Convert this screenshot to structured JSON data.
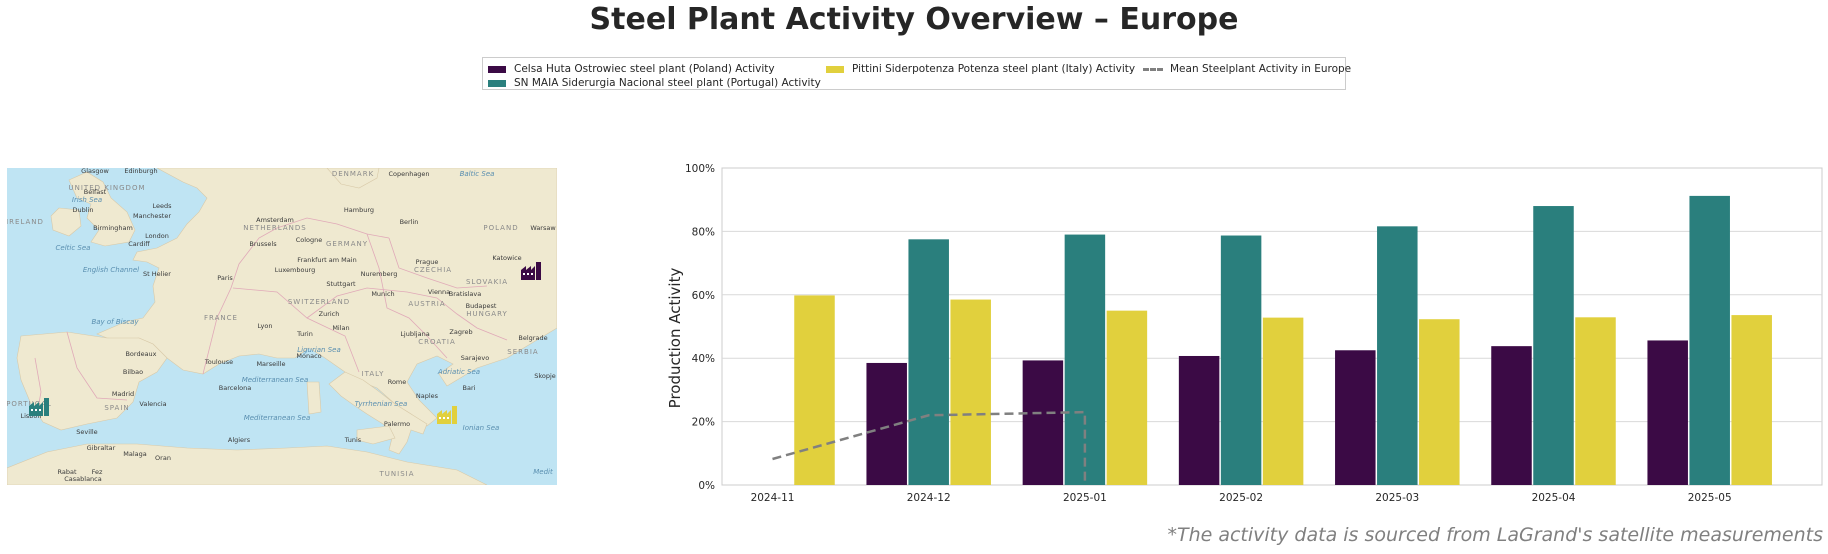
{
  "title": "Steel Plant Activity Overview – Europe",
  "footnote": "*The activity data is sourced from LaGrand's satellite measurements",
  "colors": {
    "poland": "#3b0a45",
    "portugal": "#2a7f7d",
    "italy": "#e1d03d",
    "mean": "#808080",
    "sea": "#bfe4f3",
    "land": "#efe9d0"
  },
  "legend": [
    {
      "label": "Celsa Huta Ostrowiec steel plant (Poland) Activity",
      "kind": "bar",
      "color": "#3b0a45"
    },
    {
      "label": "SN MAIA Siderurgia Nacional steel plant (Portugal) Activity",
      "kind": "bar",
      "color": "#2a7f7d"
    },
    {
      "label": "Pittini Siderpotenza Potenza steel plant (Italy) Activity",
      "kind": "bar",
      "color": "#e1d03d"
    },
    {
      "label": "Mean Steelplant Activity in Europe",
      "kind": "line",
      "color": "#808080"
    }
  ],
  "map": {
    "labels": {
      "countries": [
        "UNITED KINGDOM",
        "IRELAND",
        "FRANCE",
        "SPAIN",
        "PORTUGAL",
        "ITALY",
        "GERMANY",
        "POLAND",
        "NETHERLANDS",
        "SWITZERLAND",
        "AUSTRIA",
        "CZECHIA",
        "SLOVAKIA",
        "HUNGARY",
        "CROATIA",
        "SERBIA",
        "DENMARK",
        "TUNISIA"
      ],
      "cities": [
        "Glasgow",
        "Edinburgh",
        "Belfast",
        "Dublin",
        "Leeds",
        "Manchester",
        "Birmingham",
        "London",
        "Cardiff",
        "Amsterdam",
        "Hamburg",
        "Berlin",
        "Warsaw",
        "Brussels",
        "Cologne",
        "Paris",
        "Frankfurt am Main",
        "Prague",
        "Luxembourg",
        "Stuttgart",
        "Nuremberg",
        "Munich",
        "Vienna",
        "Bratislava",
        "Budapest",
        "Zurich",
        "Milan",
        "Turin",
        "Lyon",
        "Bordeaux",
        "Toulouse",
        "Marseille",
        "Monaco",
        "Bilbao",
        "Barcelona",
        "Madrid",
        "Valencia",
        "Lisbon",
        "Seville",
        "Gibraltar",
        "Malaga",
        "Oran",
        "Algiers",
        "Tunis",
        "Rome",
        "Naples",
        "Bari",
        "Palermo",
        "Zagreb",
        "Ljubljana",
        "Belgrade",
        "Sarajevo",
        "Skopje",
        "Copenhagen",
        "Katowice",
        "Rabat",
        "Fez",
        "Casablanca",
        "St Helier"
      ],
      "seas": [
        "Irish Sea",
        "Celtic Sea",
        "English Channel",
        "Bay of Biscay",
        "Baltic Sea",
        "Mediterranean Sea",
        "Ligurian Sea",
        "Tyrrhenian Sea",
        "Adriatic Sea",
        "Ionian Sea",
        "Mediterranean Sea",
        "Medit"
      ]
    },
    "markers": [
      {
        "plant": "poland",
        "icon": "factory-icon"
      },
      {
        "plant": "portugal",
        "icon": "factory-icon"
      },
      {
        "plant": "italy",
        "icon": "factory-icon"
      }
    ]
  },
  "chart_data": {
    "type": "bar",
    "title": "",
    "xlabel": "",
    "ylabel": "Production Activity",
    "ylim": [
      0,
      100
    ],
    "yticks": [
      "0%",
      "20%",
      "40%",
      "60%",
      "80%",
      "100%"
    ],
    "grid": true,
    "categories": [
      "2024-11",
      "2024-12",
      "2025-01",
      "2025-02",
      "2025-03",
      "2025-04",
      "2025-05"
    ],
    "series": [
      {
        "name": "Celsa Huta Ostrowiec steel plant (Poland) Activity",
        "type": "bar",
        "color": "#3b0a45",
        "values": [
          null,
          38.5,
          39.3,
          40.7,
          42.5,
          43.8,
          45.6
        ]
      },
      {
        "name": "SN MAIA Siderurgia Nacional steel plant (Portugal) Activity",
        "type": "bar",
        "color": "#2a7f7d",
        "values": [
          null,
          77.5,
          79.0,
          78.7,
          81.6,
          88.0,
          91.2
        ]
      },
      {
        "name": "Pittini Siderpotenza Potenza steel plant (Italy) Activity",
        "type": "bar",
        "color": "#e1d03d",
        "values": [
          59.8,
          58.5,
          55.0,
          52.8,
          52.3,
          52.9,
          53.6
        ]
      },
      {
        "name": "Mean Steelplant Activity in Europe",
        "type": "line",
        "color": "#808080",
        "values": [
          8.2,
          22.0,
          23.0,
          null,
          null,
          null,
          null
        ],
        "drop_to_zero_after_last": true
      }
    ]
  }
}
